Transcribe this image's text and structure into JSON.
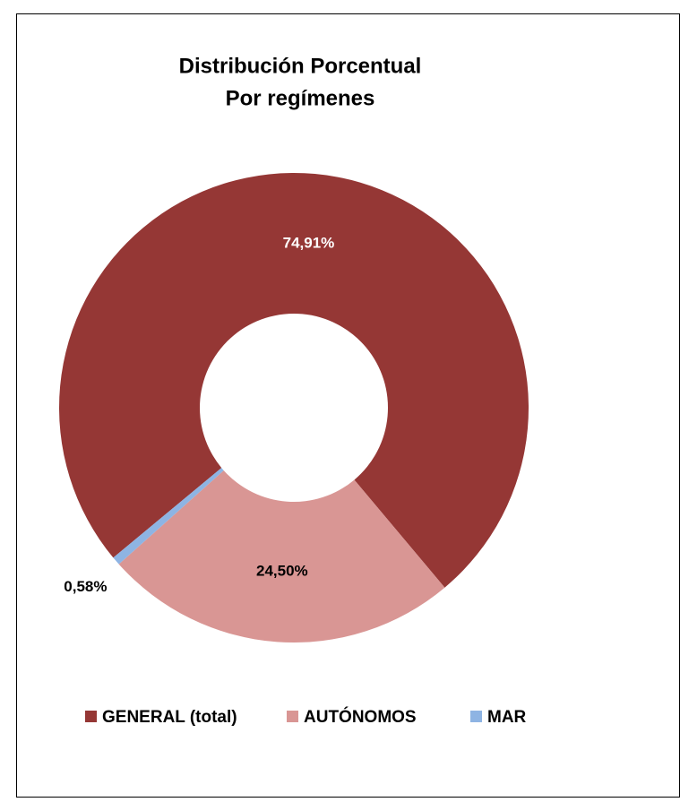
{
  "chart_data": {
    "type": "donut",
    "title": "Distribución Porcentual",
    "subtitle": "Por regímenes",
    "categories": [
      "GENERAL (total)",
      "AUTÓNOMOS",
      "MAR"
    ],
    "values": [
      74.91,
      24.5,
      0.58
    ],
    "value_labels": [
      "74,91%",
      "24,50%",
      "0,58%"
    ],
    "colors": [
      "#953735",
      "#d99694",
      "#8eb4e3"
    ],
    "legend": "bottom"
  }
}
